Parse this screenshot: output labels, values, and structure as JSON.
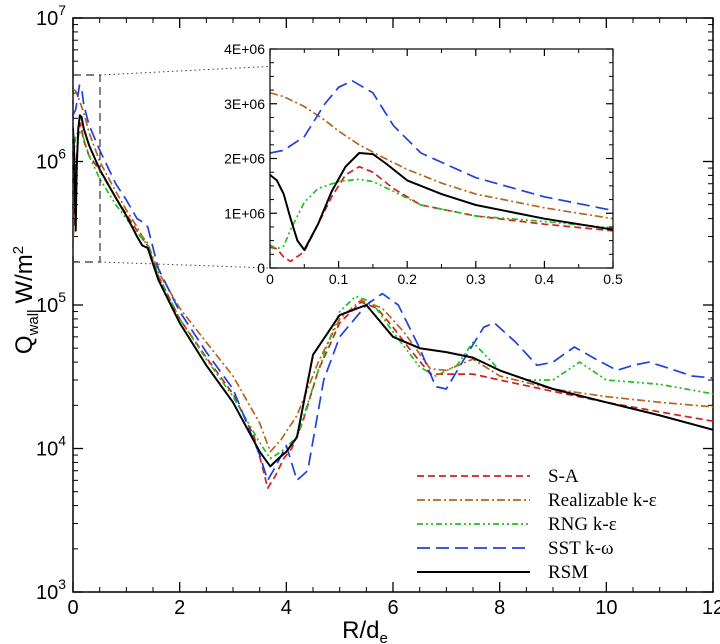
{
  "chart_data": [
    {
      "type": "line",
      "title": "",
      "xlabel": {
        "base": "R/d",
        "sub": "e"
      },
      "ylabel": {
        "base": "Q",
        "sub": "wall",
        "unit": "W/m",
        "sup": "2"
      },
      "xlim": [
        0,
        12
      ],
      "ylim_log10": [
        3,
        7
      ],
      "yscale": "log",
      "xticks": [
        "0",
        "2",
        "4",
        "6",
        "8",
        "10",
        "12"
      ],
      "yticks": [
        {
          "base": "10",
          "exp": "3"
        },
        {
          "base": "10",
          "exp": "4"
        },
        {
          "base": "10",
          "exp": "5"
        },
        {
          "base": "10",
          "exp": "6"
        },
        {
          "base": "10",
          "exp": "7"
        }
      ],
      "legend_position": "bottom-right",
      "series": [
        {
          "name": "S-A",
          "color": "#d42020",
          "dash": "dashed",
          "x": [
            0,
            0.04,
            0.1,
            0.14,
            0.2,
            0.3,
            0.5,
            0.8,
            1.0,
            1.2,
            1.3,
            1.4,
            1.6,
            2.0,
            2.5,
            3.0,
            3.4,
            3.55,
            3.65,
            3.8,
            3.95,
            4.1,
            4.3,
            4.6,
            5.0,
            5.4,
            5.7,
            6.0,
            6.3,
            6.7,
            7.0,
            7.5,
            8.0,
            9.0,
            10.0,
            11.0,
            12.0
          ],
          "y": [
            250000,
            800000,
            1500000,
            1850000,
            1400000,
            1100000,
            870000,
            560000,
            430000,
            330000,
            290000,
            260000,
            160000,
            80000,
            43000,
            24000,
            12000,
            7500,
            5300,
            6500,
            8500,
            10000,
            15000,
            35000,
            75000,
            105000,
            95000,
            70000,
            50000,
            33000,
            33000,
            33000,
            30000,
            25000,
            21000,
            18000,
            15500
          ]
        },
        {
          "name": "Realizable k-ε",
          "color": "#b5651d",
          "dash": "dashdot",
          "x": [
            0,
            0.05,
            0.1,
            0.2,
            0.3,
            0.5,
            0.8,
            1.0,
            1.2,
            1.3,
            1.4,
            1.6,
            2.0,
            2.5,
            3.0,
            3.5,
            3.7,
            3.9,
            4.2,
            4.6,
            5.0,
            5.4,
            5.8,
            6.2,
            6.7,
            7.0,
            7.5,
            8.0,
            9.0,
            10.0,
            11.0,
            12.0
          ],
          "y": [
            3200000,
            3100000,
            2800000,
            2200000,
            1600000,
            1000000,
            620000,
            460000,
            350000,
            300000,
            270000,
            170000,
            95000,
            55000,
            32000,
            15000,
            9500,
            11500,
            17000,
            40000,
            80000,
            108000,
            95000,
            65000,
            36000,
            35000,
            42000,
            32000,
            26000,
            23000,
            21000,
            19500
          ]
        },
        {
          "name": "RNG k-ε",
          "color": "#20c020",
          "dash": "dashdotdot",
          "x": [
            0,
            0.05,
            0.1,
            0.15,
            0.2,
            0.3,
            0.5,
            0.8,
            1.0,
            1.2,
            1.3,
            1.4,
            1.6,
            2.0,
            2.5,
            3.0,
            3.5,
            3.7,
            3.9,
            4.2,
            4.6,
            5.0,
            5.3,
            5.6,
            6.0,
            6.5,
            6.8,
            7.2,
            7.5,
            8.0,
            8.5,
            9.0,
            9.5,
            10.0,
            10.5,
            11.0,
            12.0
          ],
          "y": [
            1000000,
            1500000,
            1620000,
            1600000,
            1450000,
            1100000,
            760000,
            500000,
            400000,
            320000,
            290000,
            260000,
            160000,
            80000,
            42000,
            23000,
            11000,
            8500,
            9500,
            12000,
            35000,
            90000,
            115000,
            105000,
            65000,
            37000,
            32000,
            38000,
            55000,
            35000,
            30000,
            30000,
            40000,
            30000,
            29000,
            28000,
            24000
          ]
        },
        {
          "name": "SST k-ω",
          "color": "#2040e0",
          "dash": "longdash",
          "x": [
            0,
            0.05,
            0.1,
            0.12,
            0.16,
            0.2,
            0.3,
            0.5,
            0.8,
            1.0,
            1.2,
            1.3,
            1.4,
            1.6,
            2.0,
            2.5,
            3.0,
            3.5,
            3.65,
            3.8,
            4.0,
            4.2,
            4.4,
            4.7,
            5.0,
            5.5,
            5.8,
            6.1,
            6.5,
            6.8,
            7.0,
            7.3,
            7.7,
            7.9,
            8.3,
            8.7,
            9.0,
            9.4,
            9.8,
            10.2,
            10.5,
            10.8,
            11.2,
            11.6,
            12.0
          ],
          "y": [
            2100000,
            2300000,
            3000000,
            3400000,
            3300000,
            2500000,
            1800000,
            1200000,
            700000,
            540000,
            400000,
            380000,
            350000,
            180000,
            90000,
            47000,
            26000,
            9000,
            6000,
            7500,
            10500,
            6000,
            7000,
            30000,
            60000,
            100000,
            120000,
            100000,
            50000,
            27000,
            26000,
            40000,
            70000,
            75000,
            55000,
            38000,
            40000,
            51000,
            42000,
            35000,
            38000,
            40000,
            36000,
            32000,
            31000
          ]
        },
        {
          "name": "RSM",
          "color": "#000000",
          "dash": "solid",
          "x": [
            0,
            0.02,
            0.04,
            0.05,
            0.07,
            0.1,
            0.13,
            0.16,
            0.2,
            0.3,
            0.5,
            0.8,
            1.0,
            1.2,
            1.3,
            1.4,
            1.6,
            2.0,
            2.5,
            3.0,
            3.5,
            3.7,
            3.85,
            4.0,
            4.2,
            4.5,
            5.0,
            5.5,
            6.0,
            6.5,
            7.0,
            7.5,
            8.0,
            9.0,
            10.0,
            11.0,
            12.0
          ],
          "y": [
            1700000,
            1200000,
            500000,
            330000,
            900000,
            1700000,
            2100000,
            2050000,
            1700000,
            1300000,
            880000,
            560000,
            420000,
            300000,
            260000,
            250000,
            150000,
            75000,
            38000,
            21000,
            9500,
            7500,
            8500,
            9500,
            12000,
            45000,
            85000,
            100000,
            60000,
            50000,
            47000,
            43000,
            35000,
            26000,
            21000,
            17000,
            13500
          ]
        }
      ]
    },
    {
      "type": "line",
      "title": "",
      "xlim": [
        0,
        0.5
      ],
      "ylim": [
        0,
        4000000
      ],
      "yscale": "linear",
      "xticks": [
        "0",
        "0.1",
        "0.2",
        "0.3",
        "0.4",
        "0.5"
      ],
      "yticks": [
        "0",
        "1E+06",
        "2E+06",
        "3E+06",
        "4E+06"
      ],
      "series": [
        {
          "name": "S-A",
          "color": "#d42020",
          "dash": "dashed",
          "x": [
            0,
            0.01,
            0.02,
            0.03,
            0.05,
            0.07,
            0.09,
            0.11,
            0.13,
            0.15,
            0.18,
            0.22,
            0.3,
            0.4,
            0.5
          ],
          "y": [
            380000,
            350000,
            200000,
            120000,
            300000,
            800000,
            1300000,
            1700000,
            1850000,
            1750000,
            1450000,
            1150000,
            950000,
            800000,
            680000
          ]
        },
        {
          "name": "Realizable k-ε",
          "color": "#b5651d",
          "dash": "dashdot",
          "x": [
            0,
            0.02,
            0.05,
            0.08,
            0.1,
            0.13,
            0.16,
            0.2,
            0.25,
            0.3,
            0.4,
            0.5
          ],
          "y": [
            3200000,
            3130000,
            2950000,
            2700000,
            2500000,
            2250000,
            2050000,
            1800000,
            1550000,
            1350000,
            1100000,
            900000
          ]
        },
        {
          "name": "RNG k-ε",
          "color": "#20c020",
          "dash": "dashdotdot",
          "x": [
            0,
            0.01,
            0.02,
            0.03,
            0.05,
            0.07,
            0.1,
            0.13,
            0.15,
            0.18,
            0.22,
            0.3,
            0.4,
            0.5
          ],
          "y": [
            420000,
            350000,
            400000,
            700000,
            1200000,
            1450000,
            1580000,
            1620000,
            1580000,
            1400000,
            1150000,
            950000,
            850000,
            730000
          ]
        },
        {
          "name": "SST k-ω",
          "color": "#2040e0",
          "dash": "longdash",
          "x": [
            0,
            0.02,
            0.05,
            0.08,
            0.1,
            0.12,
            0.15,
            0.18,
            0.22,
            0.3,
            0.4,
            0.5
          ],
          "y": [
            2100000,
            2150000,
            2400000,
            3000000,
            3300000,
            3420000,
            3200000,
            2600000,
            2100000,
            1650000,
            1300000,
            1050000
          ]
        },
        {
          "name": "RSM",
          "color": "#000000",
          "dash": "solid",
          "x": [
            0,
            0.01,
            0.02,
            0.03,
            0.04,
            0.05,
            0.07,
            0.09,
            0.11,
            0.13,
            0.15,
            0.17,
            0.2,
            0.25,
            0.3,
            0.4,
            0.5
          ],
          "y": [
            1700000,
            1600000,
            1350000,
            900000,
            500000,
            330000,
            800000,
            1400000,
            1850000,
            2100000,
            2080000,
            1900000,
            1600000,
            1350000,
            1150000,
            900000,
            700000
          ]
        }
      ]
    }
  ]
}
